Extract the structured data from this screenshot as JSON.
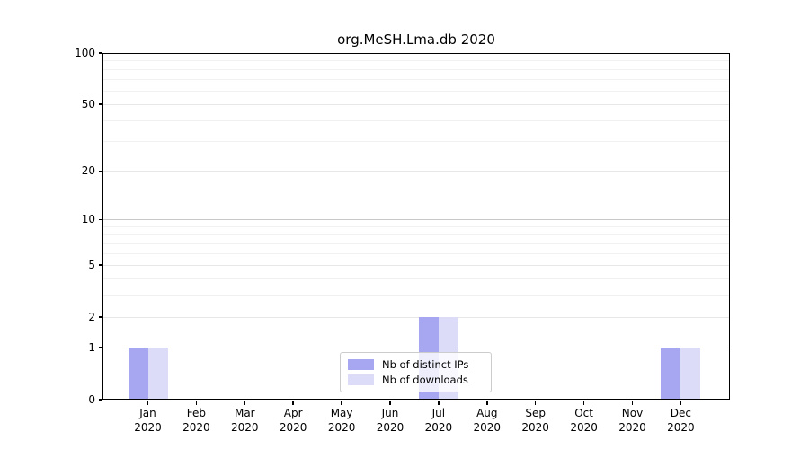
{
  "title": "org.MeSH.Lma.db 2020",
  "colors": {
    "distinct_ips": "#a7a7f1",
    "downloads": "#dcdcf8",
    "grid_decade": "#c9c9c9",
    "grid_mid": "#e7e7e7",
    "grid_minor": "#f1f1f1",
    "frame": "#000000"
  },
  "chart_data": {
    "type": "bar",
    "title": "org.MeSH.Lma.db 2020",
    "xlabel": "",
    "ylabel": "",
    "scale": "log1p",
    "ylim": [
      0,
      100
    ],
    "grid": true,
    "legend_position": "lower center",
    "categories": [
      {
        "month": "Jan",
        "year": "2020"
      },
      {
        "month": "Feb",
        "year": "2020"
      },
      {
        "month": "Mar",
        "year": "2020"
      },
      {
        "month": "Apr",
        "year": "2020"
      },
      {
        "month": "May",
        "year": "2020"
      },
      {
        "month": "Jun",
        "year": "2020"
      },
      {
        "month": "Jul",
        "year": "2020"
      },
      {
        "month": "Aug",
        "year": "2020"
      },
      {
        "month": "Sep",
        "year": "2020"
      },
      {
        "month": "Oct",
        "year": "2020"
      },
      {
        "month": "Nov",
        "year": "2020"
      },
      {
        "month": "Dec",
        "year": "2020"
      }
    ],
    "series": [
      {
        "name": "Nb of distinct IPs",
        "key": "distinct_ips",
        "values": [
          1,
          0,
          0,
          0,
          0,
          0,
          2,
          0,
          0,
          0,
          0,
          1
        ]
      },
      {
        "name": "Nb of downloads",
        "key": "downloads",
        "values": [
          1,
          0,
          0,
          0,
          0,
          0,
          2,
          0,
          0,
          0,
          0,
          1
        ]
      }
    ],
    "yticks": [
      0,
      1,
      2,
      5,
      10,
      20,
      50,
      100
    ],
    "decade_ticks": [
      1,
      10,
      100
    ],
    "mid_ticks": [
      2,
      5,
      20,
      50
    ],
    "minor_ticks": [
      3,
      4,
      6,
      7,
      8,
      9,
      30,
      40,
      60,
      70,
      80,
      90
    ]
  }
}
